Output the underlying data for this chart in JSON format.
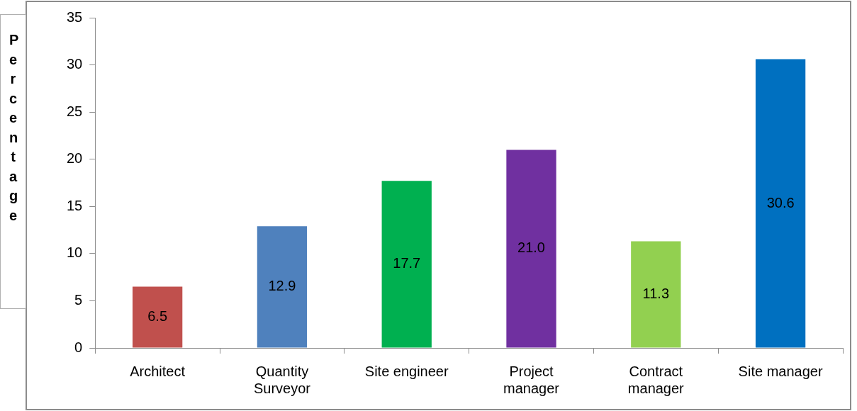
{
  "chart_data": {
    "type": "bar",
    "ylabel": "Percentage",
    "categories": [
      "Architect",
      "Quantity Surveyor",
      "Site engineer",
      "Project manager",
      "Contract manager",
      "Site manager"
    ],
    "values": [
      6.5,
      12.9,
      17.7,
      21.0,
      11.3,
      30.6
    ],
    "colors": [
      "#c0504d",
      "#4f81bd",
      "#00b050",
      "#7030a0",
      "#92d050",
      "#0070c0"
    ],
    "value_labels": [
      "6.5",
      "12.9",
      "17.7",
      "21.0",
      "11.3",
      "30.6"
    ],
    "ylim": [
      0,
      35
    ],
    "yticks": [
      0,
      5,
      10,
      15,
      20,
      25,
      30,
      35
    ],
    "grid": false,
    "legend": false
  }
}
